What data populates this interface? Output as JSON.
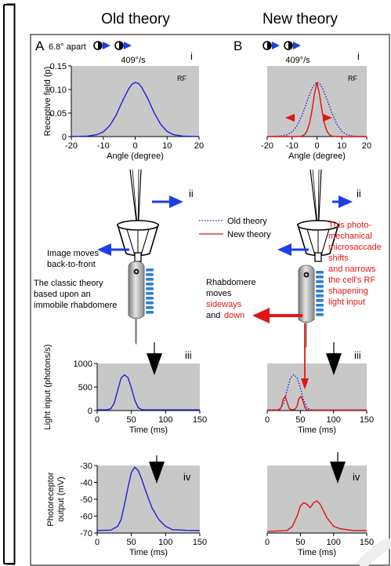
{
  "titles": {
    "left": "Old theory",
    "right": "New theory"
  },
  "panels": {
    "A": "A",
    "B": "B"
  },
  "stimulus": {
    "apart_text": "6.8° apart",
    "speed_a": "409°/s",
    "speed_b": "409°/s"
  },
  "row_labels": {
    "i": "i",
    "ii": "ii",
    "iii": "iii",
    "iv": "iv"
  },
  "rf_tag": "RF",
  "legend": {
    "old": "Old theory",
    "new": "New theory"
  },
  "annotations": {
    "image_moves": [
      "Image moves",
      "back-to-front"
    ],
    "classic": [
      "The classic theory",
      "based upon an",
      "immobile rhabdomere"
    ],
    "rhab_black": [
      "Rhabdomere",
      "moves"
    ],
    "rhab_red_1": "sideways",
    "rhab_and": "and",
    "rhab_red_2": "down",
    "new_theory_text": [
      "This photo-",
      "mechanical",
      "microsaccade",
      "shifts",
      "and narrows",
      "the cell's RF",
      "shapening",
      "light input"
    ]
  },
  "colors": {
    "old": "#1f1fd6",
    "new": "#e01010",
    "panel_bg": "#c8c8c8",
    "arrow_blue": "#1e3ee6",
    "arrow_red": "#e21515"
  },
  "chart_data": [
    {
      "id": "rf_old",
      "type": "line",
      "xlabel": "Angle (degree)",
      "ylabel": "Receptive field (p)",
      "xlim": [
        -20,
        20
      ],
      "ylim": [
        0,
        0.15
      ],
      "xticks": [
        -20,
        -10,
        0,
        10,
        20
      ],
      "yticks": [
        0,
        0.05,
        0.1,
        0.15
      ],
      "yticklabels": [
        "0",
        "0.05",
        "0.10",
        "0.15"
      ],
      "series": [
        {
          "x": [
            -20,
            -15,
            -12,
            -10,
            -8,
            -6,
            -4,
            -2,
            -1,
            0,
            1,
            2,
            4,
            6,
            8,
            10,
            12,
            15,
            20
          ],
          "y": [
            0,
            0.001,
            0.004,
            0.01,
            0.023,
            0.045,
            0.075,
            0.102,
            0.111,
            0.115,
            0.113,
            0.105,
            0.08,
            0.05,
            0.026,
            0.011,
            0.004,
            0.001,
            0
          ]
        }
      ]
    },
    {
      "id": "rf_new",
      "type": "line",
      "xlabel": "Angle (degree)",
      "xlim": [
        -20,
        20
      ],
      "ylim": [
        0,
        0.15
      ],
      "xticks": [
        -20,
        -10,
        0,
        10,
        20
      ],
      "series": [
        {
          "x": [
            -20,
            -15,
            -12,
            -10,
            -8,
            -6,
            -4,
            -2,
            -1,
            0,
            1,
            2,
            4,
            6,
            8,
            10,
            12,
            15,
            20
          ],
          "y": [
            0,
            0.001,
            0.004,
            0.01,
            0.023,
            0.045,
            0.075,
            0.102,
            0.111,
            0.115,
            0.113,
            0.105,
            0.08,
            0.05,
            0.026,
            0.011,
            0.004,
            0.001,
            0
          ]
        },
        {
          "x": [
            -20,
            -8,
            -6,
            -5,
            -4,
            -3,
            -2,
            -1,
            0,
            1,
            2,
            3,
            4,
            5,
            6,
            8,
            20
          ],
          "y": [
            0,
            0,
            0.001,
            0.004,
            0.012,
            0.028,
            0.055,
            0.09,
            0.115,
            0.09,
            0.055,
            0.028,
            0.012,
            0.004,
            0.001,
            0,
            0
          ]
        }
      ]
    },
    {
      "id": "light_old",
      "type": "line",
      "xlabel": "Time (ms)",
      "ylabel": "Light input (photons/s)",
      "xlim": [
        0,
        150
      ],
      "ylim": [
        0,
        1000
      ],
      "xticks": [
        0,
        50,
        100,
        150
      ],
      "yticks": [
        0,
        500,
        1000
      ],
      "series": [
        {
          "x": [
            0,
            15,
            20,
            25,
            30,
            35,
            40,
            45,
            50,
            55,
            60,
            65,
            70,
            150
          ],
          "y": [
            15,
            18,
            40,
            160,
            430,
            690,
            760,
            700,
            480,
            220,
            60,
            20,
            15,
            15
          ]
        }
      ]
    },
    {
      "id": "light_new",
      "type": "line",
      "xlabel": "Time (ms)",
      "xlim": [
        0,
        150
      ],
      "ylim": [
        0,
        1000
      ],
      "xticks": [
        0,
        50,
        100,
        150
      ],
      "series": [
        {
          "x": [
            0,
            15,
            20,
            25,
            30,
            35,
            40,
            45,
            50,
            55,
            60,
            65,
            70,
            150
          ],
          "y": [
            15,
            18,
            40,
            160,
            430,
            690,
            760,
            700,
            480,
            220,
            60,
            20,
            15,
            15
          ]
        },
        {
          "x": [
            0,
            18,
            21,
            24,
            27,
            30,
            33,
            36,
            39,
            42,
            45,
            48,
            51,
            54,
            57,
            60,
            64,
            150
          ],
          "y": [
            10,
            10,
            60,
            240,
            300,
            180,
            50,
            20,
            20,
            30,
            90,
            260,
            300,
            200,
            60,
            15,
            10,
            10
          ]
        }
      ]
    },
    {
      "id": "photo_old",
      "type": "line",
      "xlabel": "Time (ms)",
      "ylabel": "Photoreceptor output (mV)",
      "xlim": [
        0,
        150
      ],
      "ylim": [
        -70,
        -30
      ],
      "xticks": [
        0,
        50,
        100,
        150
      ],
      "yticks": [
        -70,
        -60,
        -50,
        -40,
        -30
      ],
      "series": [
        {
          "x": [
            0,
            20,
            30,
            35,
            40,
            45,
            50,
            55,
            60,
            65,
            70,
            80,
            90,
            100,
            110,
            130,
            150
          ],
          "y": [
            -68.5,
            -68.3,
            -66,
            -62,
            -53,
            -43,
            -34,
            -31,
            -33,
            -38,
            -44,
            -55,
            -62,
            -66,
            -68,
            -68.4,
            -68.5
          ]
        }
      ]
    },
    {
      "id": "photo_new",
      "type": "line",
      "xlabel": "Time (ms)",
      "xlim": [
        0,
        150
      ],
      "ylim": [
        -70,
        -30
      ],
      "xticks": [
        0,
        50,
        100,
        150
      ],
      "series": [
        {
          "x": [
            0,
            30,
            38,
            45,
            50,
            55,
            60,
            65,
            70,
            75,
            80,
            90,
            100,
            110,
            120,
            130,
            150
          ],
          "y": [
            -69,
            -68.5,
            -66,
            -60,
            -54,
            -52,
            -53,
            -55,
            -52,
            -51,
            -53,
            -61,
            -66,
            -67.5,
            -68,
            -68.5,
            -68.5
          ]
        }
      ]
    }
  ]
}
